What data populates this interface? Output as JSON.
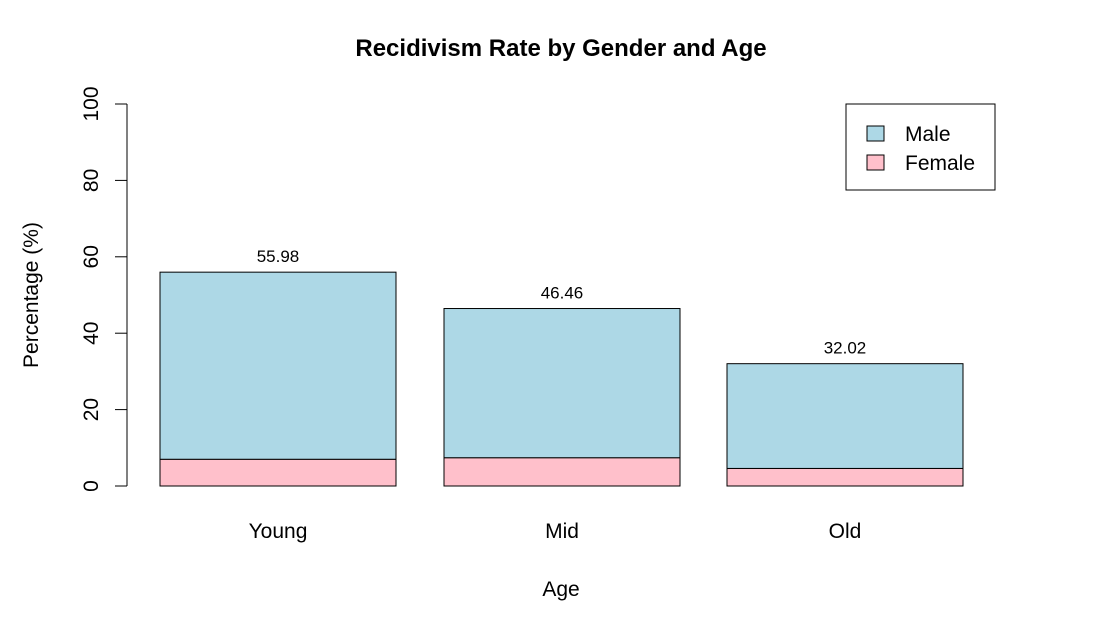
{
  "chart_data": {
    "type": "bar",
    "stacked": true,
    "title": "Recidivism Rate by Gender and Age",
    "xlabel": "Age",
    "ylabel": "Percentage (%)",
    "ylim": [
      0,
      100
    ],
    "yticks": [
      "0",
      "20",
      "40",
      "60",
      "80",
      "100"
    ],
    "categories": [
      "Young",
      "Mid",
      "Old"
    ],
    "series": [
      {
        "name": "Female",
        "color": "#ffc0cb",
        "values": [
          7.0,
          7.4,
          4.6
        ]
      },
      {
        "name": "Male",
        "color": "#add8e6",
        "values": [
          48.98,
          39.06,
          27.42
        ]
      }
    ],
    "totals": [
      55.98,
      46.46,
      32.02
    ],
    "total_labels": [
      "55.98",
      "46.46",
      "32.02"
    ],
    "legend": {
      "position": "top-right",
      "entries": [
        {
          "label": "Male",
          "color": "#add8e6"
        },
        {
          "label": "Female",
          "color": "#ffc0cb"
        }
      ]
    },
    "grid": false
  }
}
